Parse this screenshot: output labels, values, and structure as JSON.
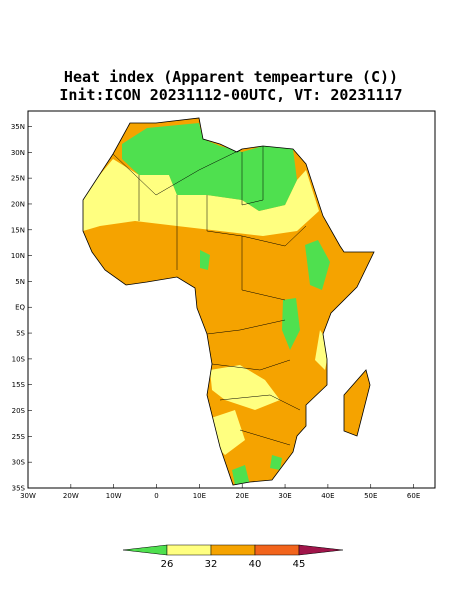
{
  "chart_data": {
    "type": "map",
    "title": "Heat index (Apparent tempearture (C))",
    "subtitle": "Init:ICON 20231112-00UTC, VT: 20231117",
    "xlim": [
      -30,
      65
    ],
    "ylim": [
      -35,
      38
    ],
    "xticks": [
      {
        "value": -30,
        "label": "30W"
      },
      {
        "value": -20,
        "label": "20W"
      },
      {
        "value": -10,
        "label": "10W"
      },
      0,
      {
        "value": 10,
        "label": "10E"
      },
      {
        "value": 20,
        "label": "20E"
      },
      {
        "value": 30,
        "label": "30E"
      },
      {
        "value": 40,
        "label": "40E"
      },
      {
        "value": 50,
        "label": "50E"
      },
      {
        "value": 60,
        "label": "60E"
      }
    ],
    "yticks": [
      {
        "value": -35,
        "label": "35S"
      },
      {
        "value": -30,
        "label": "30S"
      },
      {
        "value": -25,
        "label": "25S"
      },
      {
        "value": -20,
        "label": "20S"
      },
      {
        "value": -15,
        "label": "15S"
      },
      {
        "value": -10,
        "label": "10S"
      },
      {
        "value": -5,
        "label": "5S"
      },
      {
        "value": 0,
        "label": "EQ"
      },
      {
        "value": 5,
        "label": "5N"
      },
      {
        "value": 10,
        "label": "10N"
      },
      {
        "value": 15,
        "label": "15N"
      },
      {
        "value": 20,
        "label": "20N"
      },
      {
        "value": 25,
        "label": "25N"
      },
      {
        "value": 30,
        "label": "30N"
      },
      {
        "value": 35,
        "label": "35N"
      }
    ],
    "colorbar": {
      "ticks": [
        26,
        32,
        40,
        45
      ],
      "colors": [
        "#4fe04f",
        "#ffff80",
        "#f5a300",
        "#f2641c",
        "#a0154a"
      ]
    }
  }
}
